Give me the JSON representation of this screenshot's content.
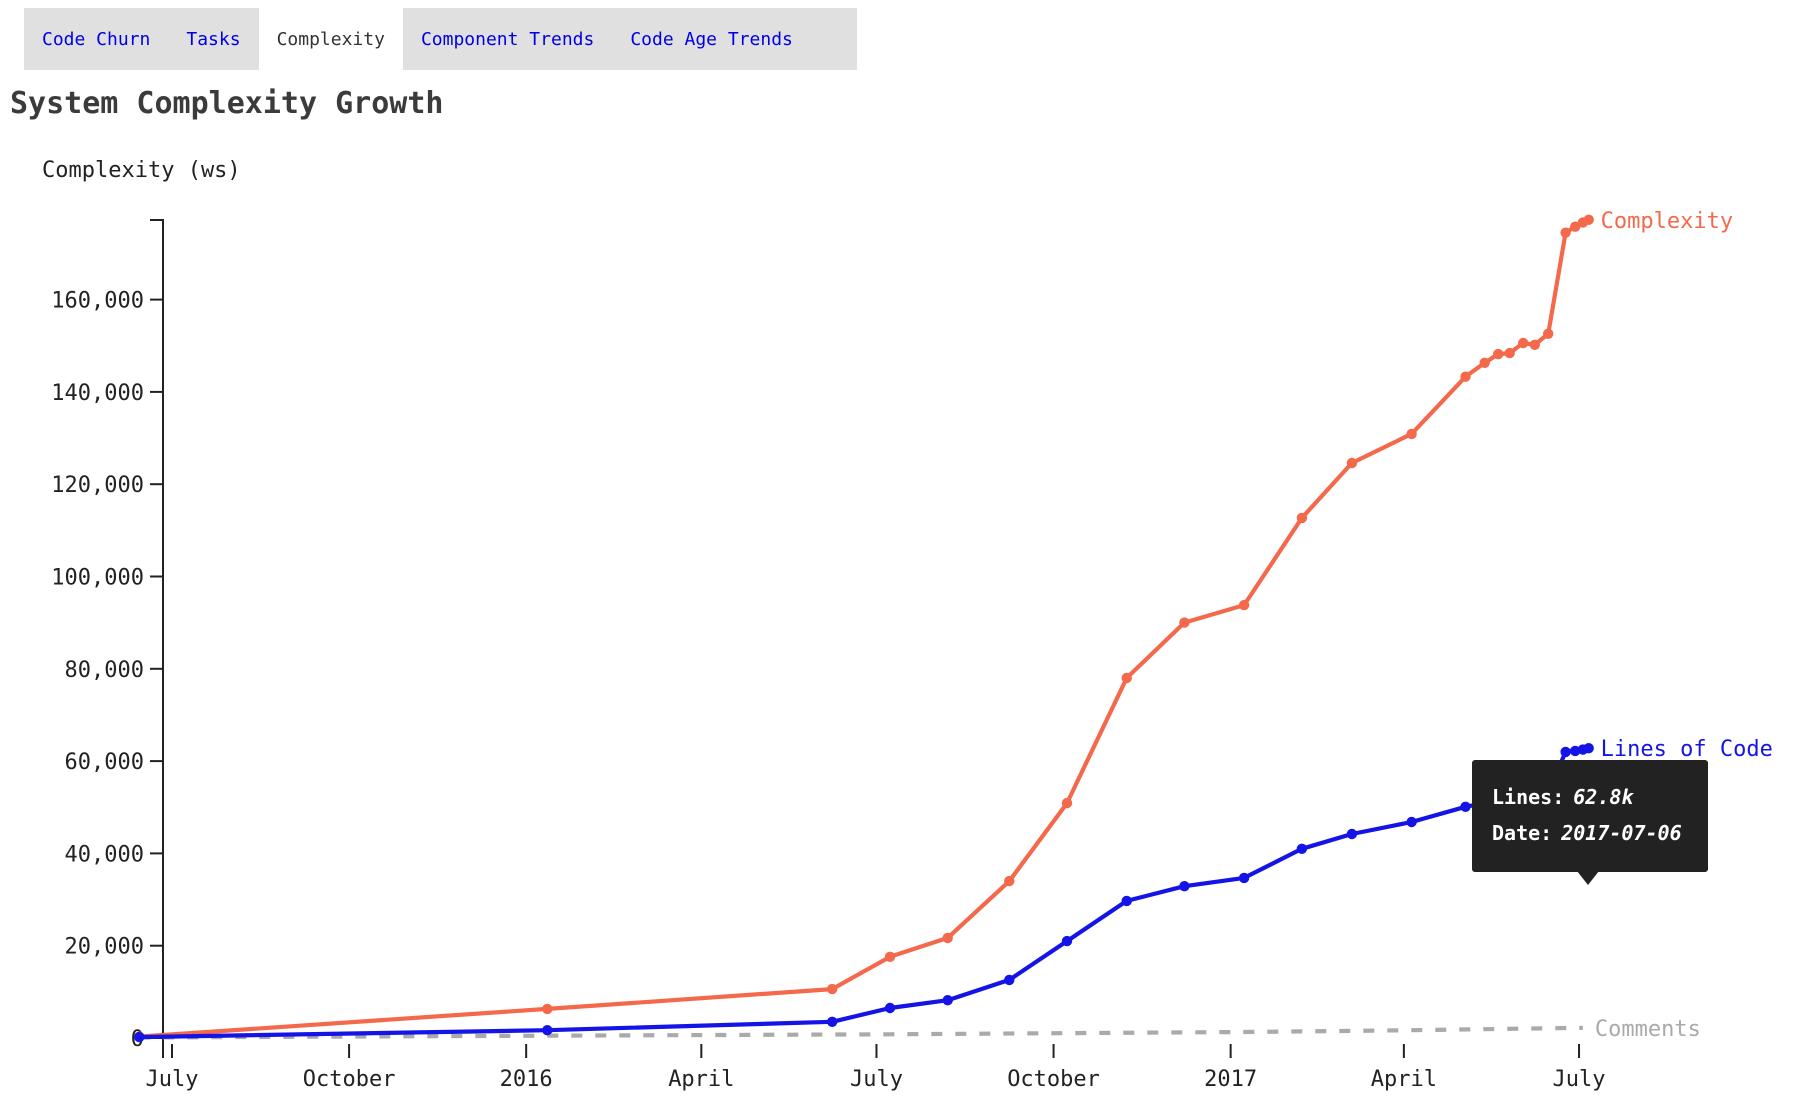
{
  "tabs": {
    "items": [
      {
        "label": "Code Churn",
        "active": false
      },
      {
        "label": "Tasks",
        "active": false
      },
      {
        "label": "Complexity",
        "active": true
      },
      {
        "label": "Component Trends",
        "active": false
      },
      {
        "label": "Code Age Trends",
        "active": false
      }
    ]
  },
  "chart_data": {
    "type": "line",
    "title": "System Complexity Growth",
    "xlabel": "",
    "ylabel": "Complexity (ws)",
    "ylim": [
      0,
      177500
    ],
    "x_domain": [
      "2015-06-14",
      "2017-08-20"
    ],
    "grid": false,
    "legend_position": "end-of-line-labels",
    "y_ticks": [
      0,
      20000,
      40000,
      60000,
      80000,
      100000,
      120000,
      140000,
      160000
    ],
    "x_ticks": [
      {
        "date": "2015-07-01",
        "label": "July"
      },
      {
        "date": "2015-10-01",
        "label": "October"
      },
      {
        "date": "2016-01-01",
        "label": "2016"
      },
      {
        "date": "2016-04-01",
        "label": "April"
      },
      {
        "date": "2016-07-01",
        "label": "July"
      },
      {
        "date": "2016-10-01",
        "label": "October"
      },
      {
        "date": "2017-01-01",
        "label": "2017"
      },
      {
        "date": "2017-04-01",
        "label": "April"
      },
      {
        "date": "2017-07-01",
        "label": "July"
      }
    ],
    "series": [
      {
        "name": "Comments",
        "color": "#aaaaaa",
        "style": "dashed",
        "markers": false,
        "points": [
          [
            "2015-06-14",
            100
          ],
          [
            "2016-01-12",
            500
          ],
          [
            "2016-07-08",
            800
          ],
          [
            "2017-01-08",
            1300
          ],
          [
            "2017-04-05",
            1700
          ],
          [
            "2017-07-03",
            2200
          ]
        ]
      },
      {
        "name": "Complexity",
        "color": "#f4694b",
        "style": "solid",
        "markers": true,
        "points": [
          [
            "2015-06-14",
            300
          ],
          [
            "2016-01-12",
            6300
          ],
          [
            "2016-06-08",
            10600
          ],
          [
            "2016-07-08",
            17600
          ],
          [
            "2016-08-07",
            21700
          ],
          [
            "2016-09-08",
            34000
          ],
          [
            "2016-10-08",
            50900
          ],
          [
            "2016-11-08",
            78000
          ],
          [
            "2016-12-08",
            90000
          ],
          [
            "2017-01-08",
            93800
          ],
          [
            "2017-02-07",
            112700
          ],
          [
            "2017-03-05",
            124600
          ],
          [
            "2017-04-05",
            130900
          ],
          [
            "2017-05-03",
            143300
          ],
          [
            "2017-05-13",
            146300
          ],
          [
            "2017-05-20",
            148200
          ],
          [
            "2017-05-26",
            148400
          ],
          [
            "2017-06-02",
            150600
          ],
          [
            "2017-06-08",
            150200
          ],
          [
            "2017-06-15",
            152600
          ],
          [
            "2017-06-24",
            174500
          ],
          [
            "2017-06-29",
            175800
          ],
          [
            "2017-07-03",
            176700
          ],
          [
            "2017-07-06",
            177300
          ]
        ]
      },
      {
        "name": "Lines of Code",
        "color": "#1414e6",
        "style": "solid",
        "markers": true,
        "points": [
          [
            "2015-06-14",
            200
          ],
          [
            "2016-01-12",
            1700
          ],
          [
            "2016-06-08",
            3500
          ],
          [
            "2016-07-08",
            6500
          ],
          [
            "2016-08-07",
            8200
          ],
          [
            "2016-09-08",
            12600
          ],
          [
            "2016-10-08",
            21000
          ],
          [
            "2016-11-08",
            29700
          ],
          [
            "2016-12-08",
            32900
          ],
          [
            "2017-01-08",
            34700
          ],
          [
            "2017-02-07",
            41000
          ],
          [
            "2017-03-05",
            44200
          ],
          [
            "2017-04-05",
            46800
          ],
          [
            "2017-05-03",
            50100
          ],
          [
            "2017-05-13",
            50900
          ],
          [
            "2017-05-20",
            51600
          ],
          [
            "2017-05-26",
            51800
          ],
          [
            "2017-06-02",
            52200
          ],
          [
            "2017-06-08",
            52900
          ],
          [
            "2017-06-15",
            53300
          ],
          [
            "2017-06-24",
            62000
          ],
          [
            "2017-06-29",
            62200
          ],
          [
            "2017-07-03",
            62500
          ],
          [
            "2017-07-06",
            62800
          ]
        ]
      }
    ]
  },
  "tooltip": {
    "lines_label": "Lines:",
    "lines_value": "62.8k",
    "date_label": "Date:",
    "date_value": "2017-07-06",
    "target_series": "Lines of Code",
    "target_date": "2017-07-06"
  }
}
